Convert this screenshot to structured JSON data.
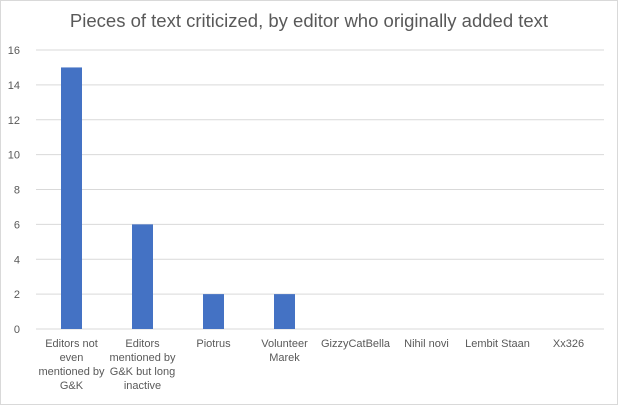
{
  "chart_data": {
    "type": "bar",
    "title": "Pieces of text criticized, by editor who originally added text",
    "categories": [
      "Editors not even mentioned by G&K",
      "Editors mentioned by G&K but long inactive",
      "Piotrus",
      "Volunteer Marek",
      "GizzyCatBella",
      "Nihil novi",
      "Lembit Staan",
      "Xx326"
    ],
    "category_lines": [
      [
        "Editors not",
        "even",
        "mentioned by",
        "G&K"
      ],
      [
        "Editors",
        "mentioned by",
        "G&K but long",
        "inactive"
      ],
      [
        "Piotrus"
      ],
      [
        "Volunteer",
        "Marek"
      ],
      [
        "GizzyCatBella"
      ],
      [
        "Nihil novi"
      ],
      [
        "Lembit Staan"
      ],
      [
        "Xx326"
      ]
    ],
    "values": [
      15,
      6,
      2,
      2,
      0,
      0,
      0,
      0
    ],
    "yticks": [
      "0",
      "2",
      "4",
      "6",
      "8",
      "10",
      "12",
      "14",
      "16"
    ],
    "ylim": [
      0,
      16
    ],
    "xlabel": "",
    "ylabel": "",
    "grid": true,
    "legend": "none",
    "bar_color": "#4472c4",
    "grid_color": "#d9d9d9",
    "text_color": "#595959"
  }
}
